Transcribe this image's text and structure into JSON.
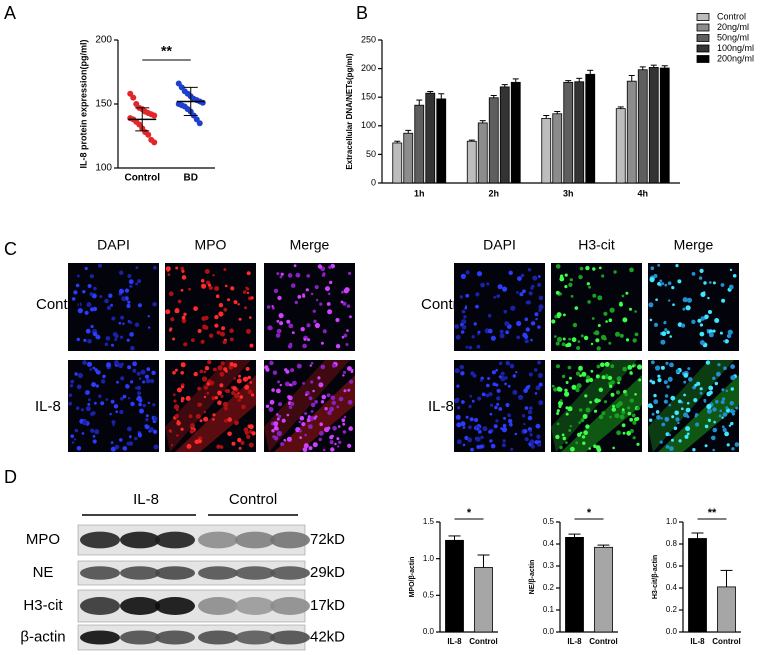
{
  "panel_labels": [
    "A",
    "B",
    "C",
    "D"
  ],
  "panel_c": {
    "left": {
      "columns": [
        "DAPI",
        "MPO",
        "Merge"
      ],
      "rows": [
        "Control",
        "IL-8"
      ]
    },
    "right": {
      "columns": [
        "DAPI",
        "H3-cit",
        "Merge"
      ],
      "rows": [
        "Control",
        "IL-8"
      ]
    }
  },
  "panel_d_blot": {
    "groups": [
      "IL-8",
      "Control"
    ],
    "rows": [
      {
        "label": "MPO",
        "size": "72kD"
      },
      {
        "label": "NE",
        "size": "29kD"
      },
      {
        "label": "H3-cit",
        "size": "17kD"
      },
      {
        "label": "β-actin",
        "size": "42kD"
      }
    ]
  },
  "chart_data": [
    {
      "type": "strip",
      "ylabel": "IL-8 protein expression(pg/ml)",
      "categories": [
        "Control",
        "BD"
      ],
      "series": [
        {
          "color": "#e3262a",
          "values": [
            158,
            155,
            150,
            147,
            146,
            144,
            143,
            142,
            141,
            139,
            138,
            136,
            134,
            131,
            128,
            126,
            122,
            120
          ],
          "mean": 138,
          "sd": 9
        },
        {
          "color": "#1f3fcf",
          "values": [
            166,
            163,
            160,
            158,
            156,
            154,
            153,
            152,
            151,
            150,
            149,
            148,
            146,
            144,
            141,
            138,
            135
          ],
          "mean": 152,
          "sd": 11
        }
      ],
      "ylim": [
        100,
        200
      ],
      "yticks": [
        100,
        150,
        200
      ],
      "annotation": "**"
    },
    {
      "type": "grouped_bar",
      "ylabel": "Extracellular DNA/NETs(pg/ml)",
      "categories": [
        "1h",
        "2h",
        "3h",
        "4h"
      ],
      "series": [
        {
          "name": "Control",
          "color": "#bdbdbd",
          "values": [
            70,
            73,
            113,
            130
          ],
          "errors": [
            3,
            2,
            5,
            3
          ]
        },
        {
          "name": "20ng/ml",
          "color": "#8c8c8c",
          "values": [
            87,
            105,
            121,
            178
          ],
          "errors": [
            5,
            4,
            4,
            10
          ]
        },
        {
          "name": "50ng/ml",
          "color": "#5e5e5e",
          "values": [
            136,
            149,
            176,
            198
          ],
          "errors": [
            9,
            4,
            3,
            5
          ]
        },
        {
          "name": "100ng/ml",
          "color": "#333333",
          "values": [
            157,
            168,
            177,
            202
          ],
          "errors": [
            3,
            4,
            6,
            4
          ]
        },
        {
          "name": "200ng/ml",
          "color": "#000000",
          "values": [
            147,
            176,
            190,
            201
          ],
          "errors": [
            9,
            6,
            7,
            4
          ]
        }
      ],
      "ylim": [
        0,
        250
      ],
      "yticks": [
        0,
        50,
        100,
        150,
        200,
        250
      ],
      "legend": "outside-right"
    },
    {
      "type": "bar",
      "ylabel": "MPO/β-actin",
      "categories": [
        "IL-8",
        "Control"
      ],
      "colors": [
        "#000000",
        "#a6a6a6"
      ],
      "values": [
        1.25,
        0.88
      ],
      "errors": [
        0.06,
        0.17
      ],
      "ylim": [
        0,
        1.5
      ],
      "yticks": [
        {
          "value": 0,
          "label": "0.0"
        },
        0.5,
        {
          "value": 1,
          "label": "1.0"
        },
        1.5
      ],
      "annotation": "*"
    },
    {
      "type": "bar",
      "ylabel": "NE/β-actin",
      "categories": [
        "IL-8",
        "Control"
      ],
      "colors": [
        "#000000",
        "#a6a6a6"
      ],
      "values": [
        0.43,
        0.385
      ],
      "errors": [
        0.015,
        0.01
      ],
      "ylim": [
        0,
        0.5
      ],
      "yticks": [
        {
          "value": 0,
          "label": "0.0"
        },
        0.1,
        0.2,
        0.3,
        0.4,
        0.5
      ],
      "annotation": "*"
    },
    {
      "type": "bar",
      "ylabel": "H3-cit/β-actin",
      "categories": [
        "IL-8",
        "Control"
      ],
      "colors": [
        "#000000",
        "#a6a6a6"
      ],
      "values": [
        0.85,
        0.41
      ],
      "errors": [
        0.05,
        0.15
      ],
      "ylim": [
        0,
        1
      ],
      "yticks": [
        {
          "value": 0,
          "label": "0.0"
        },
        0.2,
        0.4,
        0.6,
        0.8,
        {
          "value": 1,
          "label": "1.0"
        }
      ],
      "annotation": "**"
    }
  ]
}
